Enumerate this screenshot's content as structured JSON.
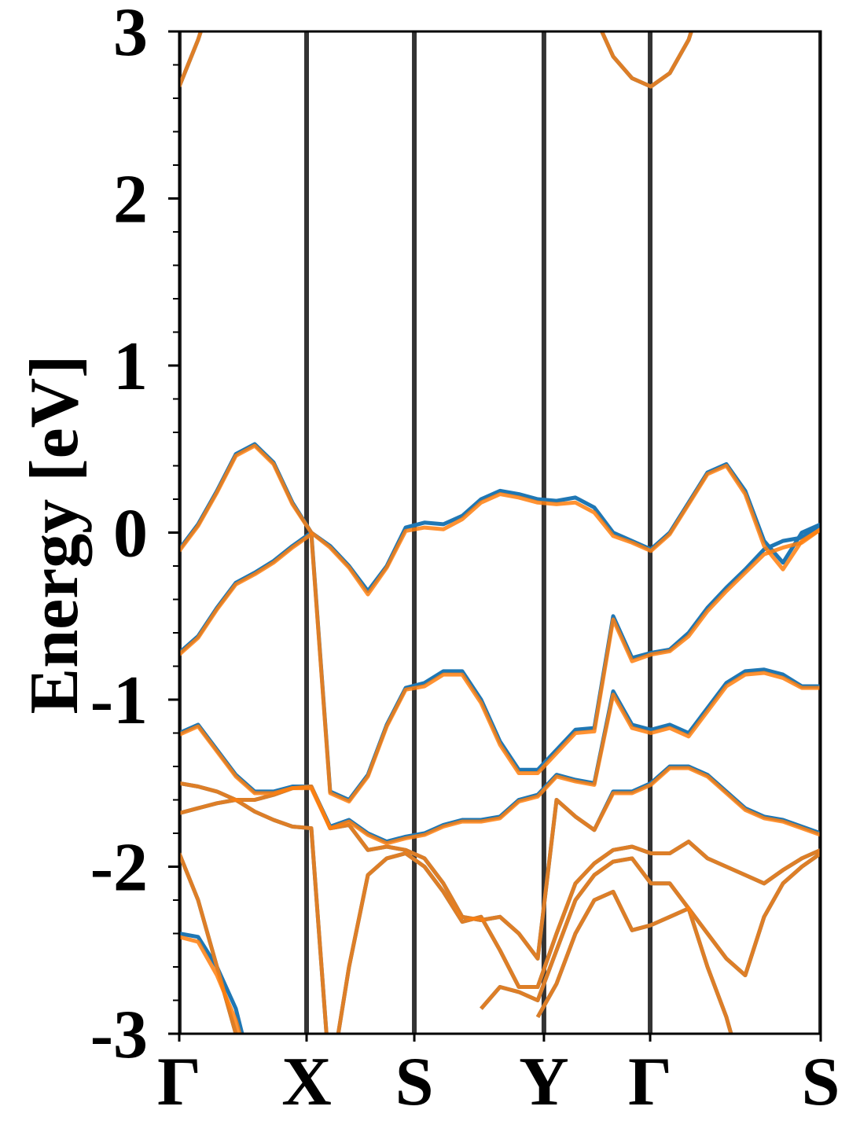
{
  "chart_data": {
    "type": "line",
    "ylabel": "Energy [eV]",
    "x": [
      0,
      1,
      2,
      3,
      4,
      5,
      6,
      7,
      8,
      9,
      10,
      11,
      12,
      13,
      14,
      15,
      16,
      17,
      18,
      19,
      20,
      21,
      22,
      23,
      24,
      25,
      26,
      27,
      28,
      29,
      30,
      31,
      32,
      33,
      34
    ],
    "xlim": [
      0,
      34
    ],
    "xticks": [
      {
        "value": 0,
        "label": "Γ"
      },
      {
        "value": 6.75,
        "label": "X"
      },
      {
        "value": 12.46,
        "label": "S"
      },
      {
        "value": 19.33,
        "label": "Y"
      },
      {
        "value": 24.96,
        "label": "Γ"
      },
      {
        "value": 34,
        "label": "S"
      }
    ],
    "ylim": [
      -3,
      3
    ],
    "yticks": [
      -3,
      -2,
      -1,
      0,
      1,
      2,
      3
    ],
    "yminorticks": [
      -2.8,
      -2.6,
      -2.4,
      -2.2,
      -1.8,
      -1.6,
      -1.4,
      -1.2,
      -0.8,
      -0.6,
      -0.4,
      -0.2,
      0.2,
      0.4,
      0.6,
      0.8,
      1.2,
      1.4,
      1.6,
      1.8,
      2.2,
      2.4,
      2.6,
      2.8
    ],
    "vlines_color": "#333333",
    "series": [
      {
        "color": "#1f77b4",
        "bands": [
          [
            2.67,
            2.95,
            3.3,
            null,
            null,
            null,
            null,
            null,
            null,
            null,
            null,
            null,
            null,
            null,
            null,
            null,
            null,
            null,
            null,
            null,
            null,
            null,
            3.1,
            2.85,
            2.72,
            2.67,
            2.75,
            2.95,
            3.3,
            null,
            null,
            null,
            null,
            null,
            null
          ],
          [
            -0.1,
            0.05,
            0.25,
            0.47,
            0.53,
            0.42,
            0.18,
            0.0,
            -0.08,
            -0.2,
            -0.35,
            -0.2,
            0.03,
            0.06,
            0.05,
            0.1,
            0.2,
            0.25,
            0.23,
            0.2,
            0.19,
            0.21,
            0.15,
            0.0,
            -0.05,
            -0.1,
            0.0,
            0.18,
            0.36,
            0.41,
            0.25,
            -0.05,
            -0.18,
            0.0,
            0.05
          ],
          [
            -0.72,
            -0.62,
            -0.45,
            -0.3,
            -0.24,
            -0.17,
            -0.08,
            0.0,
            -1.55,
            -1.6,
            -1.45,
            -1.15,
            -0.93,
            -0.9,
            -0.83,
            -0.83,
            -1.0,
            -1.25,
            -1.42,
            -1.42,
            -1.3,
            -1.18,
            -1.17,
            -0.5,
            -0.75,
            -0.72,
            -0.7,
            -0.6,
            -0.45,
            -0.33,
            -0.22,
            -0.1,
            -0.05,
            -0.03,
            0.05
          ],
          [
            -1.2,
            -1.15,
            -1.3,
            -1.45,
            -1.55,
            -1.55,
            -1.52,
            -1.52,
            -1.76,
            -1.72,
            -1.8,
            -1.85,
            -1.82,
            -1.8,
            -1.75,
            -1.72,
            -1.72,
            -1.7,
            -1.6,
            -1.57,
            -1.45,
            -1.48,
            -1.5,
            -0.95,
            -1.15,
            -1.18,
            -1.15,
            -1.2,
            -1.05,
            -0.9,
            -0.83,
            -0.82,
            -0.85,
            -0.92,
            -0.92
          ],
          [
            -1.5,
            -1.52,
            -1.55,
            -1.6,
            -1.6,
            -1.57,
            -1.53,
            -1.52,
            -1.77,
            -1.75,
            -1.9,
            -1.88,
            -1.9,
            -1.95,
            -2.1,
            -2.3,
            -2.32,
            -2.3,
            -2.4,
            -2.55,
            -1.6,
            -1.7,
            -1.78,
            -1.55,
            -1.55,
            -1.5,
            -1.4,
            -1.4,
            -1.45,
            -1.55,
            -1.65,
            -1.7,
            -1.72,
            -1.76,
            -1.8
          ],
          [
            -1.68,
            -1.65,
            -1.62,
            -1.6,
            -1.67,
            -1.72,
            -1.76,
            -1.77,
            -3.3,
            -2.6,
            -2.05,
            -1.95,
            -1.92,
            -2.0,
            -2.15,
            -2.33,
            -2.3,
            -2.5,
            -2.72,
            -2.72,
            -2.4,
            -2.1,
            -1.98,
            -1.9,
            -1.88,
            -1.92,
            -1.92,
            -1.85,
            -1.95,
            -2.0,
            -2.05,
            -2.1,
            -2.02,
            -1.95,
            -1.9
          ],
          [
            -1.92,
            -2.2,
            -2.6,
            -3.0,
            -3.3,
            null,
            null,
            null,
            null,
            null,
            null,
            null,
            null,
            null,
            null,
            null,
            -2.85,
            -2.72,
            -2.75,
            -2.8,
            -2.5,
            -2.2,
            -2.05,
            -1.97,
            -1.95,
            -2.1,
            -2.1,
            -2.25,
            -2.4,
            -2.55,
            -2.65,
            -2.3,
            -2.1,
            -2.0,
            -1.92
          ],
          [
            -2.4,
            -2.42,
            -2.6,
            -2.85,
            -3.3,
            null,
            null,
            null,
            null,
            null,
            null,
            null,
            null,
            null,
            null,
            null,
            null,
            null,
            null,
            -2.9,
            -2.7,
            -2.4,
            -2.2,
            -2.15,
            -2.38,
            -2.35,
            -2.3,
            -2.25,
            -2.6,
            -2.9,
            -3.3,
            null,
            null,
            null,
            null
          ]
        ]
      },
      {
        "color": "#ff7f0e",
        "bands": [
          [
            2.67,
            2.95,
            3.3,
            null,
            null,
            null,
            null,
            null,
            null,
            null,
            null,
            null,
            null,
            null,
            null,
            null,
            null,
            null,
            null,
            null,
            null,
            null,
            3.1,
            2.85,
            2.72,
            2.67,
            2.75,
            2.95,
            3.3,
            null,
            null,
            null,
            null,
            null,
            null
          ],
          [
            -0.11,
            0.04,
            0.24,
            0.46,
            0.52,
            0.41,
            0.17,
            0.0,
            -0.09,
            -0.21,
            -0.37,
            -0.21,
            0.01,
            0.03,
            0.02,
            0.08,
            0.18,
            0.23,
            0.21,
            0.18,
            0.17,
            0.18,
            0.12,
            -0.02,
            -0.06,
            -0.11,
            -0.01,
            0.17,
            0.35,
            0.4,
            0.23,
            -0.08,
            -0.22,
            -0.05,
            0.02
          ],
          [
            -0.73,
            -0.63,
            -0.46,
            -0.31,
            -0.25,
            -0.18,
            -0.09,
            -0.01,
            -1.56,
            -1.61,
            -1.46,
            -1.16,
            -0.94,
            -0.92,
            -0.85,
            -0.85,
            -1.02,
            -1.27,
            -1.44,
            -1.44,
            -1.32,
            -1.2,
            -1.19,
            -0.52,
            -0.77,
            -0.73,
            -0.71,
            -0.62,
            -0.47,
            -0.35,
            -0.24,
            -0.13,
            -0.09,
            -0.06,
            0.02
          ],
          [
            -1.21,
            -1.16,
            -1.31,
            -1.46,
            -1.56,
            -1.56,
            -1.53,
            -1.53,
            -1.77,
            -1.73,
            -1.81,
            -1.86,
            -1.83,
            -1.81,
            -1.76,
            -1.73,
            -1.73,
            -1.71,
            -1.61,
            -1.58,
            -1.46,
            -1.49,
            -1.51,
            -0.97,
            -1.17,
            -1.2,
            -1.17,
            -1.22,
            -1.07,
            -0.92,
            -0.85,
            -0.84,
            -0.87,
            -0.93,
            -0.93
          ],
          [
            -1.5,
            -1.52,
            -1.55,
            -1.6,
            -1.6,
            -1.57,
            -1.53,
            -1.52,
            -1.77,
            -1.75,
            -1.9,
            -1.88,
            -1.9,
            -1.95,
            -2.1,
            -2.3,
            -2.32,
            -2.3,
            -2.4,
            -2.55,
            -1.6,
            -1.7,
            -1.78,
            -1.56,
            -1.56,
            -1.51,
            -1.41,
            -1.41,
            -1.46,
            -1.56,
            -1.66,
            -1.71,
            -1.73,
            -1.77,
            -1.81
          ],
          [
            -1.68,
            -1.65,
            -1.62,
            -1.6,
            -1.67,
            -1.72,
            -1.76,
            -1.77,
            -3.3,
            -2.6,
            -2.05,
            -1.95,
            -1.92,
            -2.0,
            -2.15,
            -2.33,
            -2.3,
            -2.5,
            -2.72,
            -2.72,
            -2.4,
            -2.1,
            -1.98,
            -1.9,
            -1.88,
            -1.92,
            -1.92,
            -1.85,
            -1.95,
            -2.0,
            -2.05,
            -2.1,
            -2.02,
            -1.95,
            -1.9
          ],
          [
            -1.92,
            -2.2,
            -2.6,
            -3.0,
            -3.3,
            null,
            null,
            null,
            null,
            null,
            null,
            null,
            null,
            null,
            null,
            null,
            -2.85,
            -2.72,
            -2.75,
            -2.8,
            -2.5,
            -2.2,
            -2.05,
            -1.97,
            -1.95,
            -2.1,
            -2.1,
            -2.25,
            -2.4,
            -2.55,
            -2.65,
            -2.3,
            -2.1,
            -2.0,
            -1.92
          ],
          [
            -2.42,
            -2.45,
            -2.65,
            -2.92,
            -3.3,
            null,
            null,
            null,
            null,
            null,
            null,
            null,
            null,
            null,
            null,
            null,
            null,
            null,
            null,
            -2.9,
            -2.7,
            -2.4,
            -2.2,
            -2.15,
            -2.38,
            -2.35,
            -2.3,
            -2.25,
            -2.6,
            -2.9,
            -3.3,
            null,
            null,
            null,
            null
          ]
        ]
      }
    ]
  }
}
